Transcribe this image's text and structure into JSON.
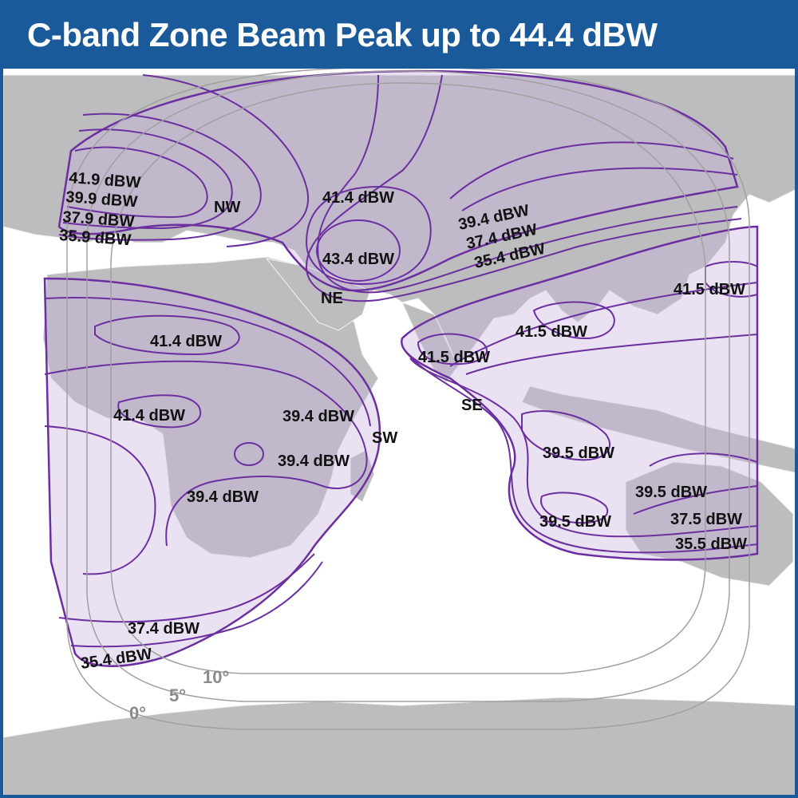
{
  "title": "C-band Zone Beam Peak up to 44.4 dBW",
  "beams": {
    "nw": "NW",
    "ne": "NE",
    "sw": "SW",
    "se": "SE"
  },
  "contours": {
    "nw": [
      "41.9 dBW",
      "39.9 dBW",
      "37.9 dBW",
      "35.9 dBW"
    ],
    "ne": [
      "41.4 dBW",
      "43.4 dBW",
      "39.4 dBW",
      "37.4 dBW",
      "35.4 dBW"
    ],
    "sw": [
      "41.4 dBW",
      "41.4 dBW",
      "39.4 dBW",
      "39.4 dBW",
      "39.4 dBW",
      "37.4 dBW",
      "35.4 dBW"
    ],
    "se": [
      "41.5 dBW",
      "41.5 dBW",
      "41.5 dBW",
      "39.5 dBW",
      "39.5 dBW",
      "39.5 dBW",
      "37.5 dBW",
      "35.5 dBW"
    ]
  },
  "elevation_angles": [
    "10°",
    "5°",
    "0°"
  ],
  "colors": {
    "header": "#1a5a9a",
    "land": "#bdbdbf",
    "coverage": "#e9e0f2",
    "contour": "#6b2fa0",
    "elevation_ring": "#a0a0a0"
  }
}
